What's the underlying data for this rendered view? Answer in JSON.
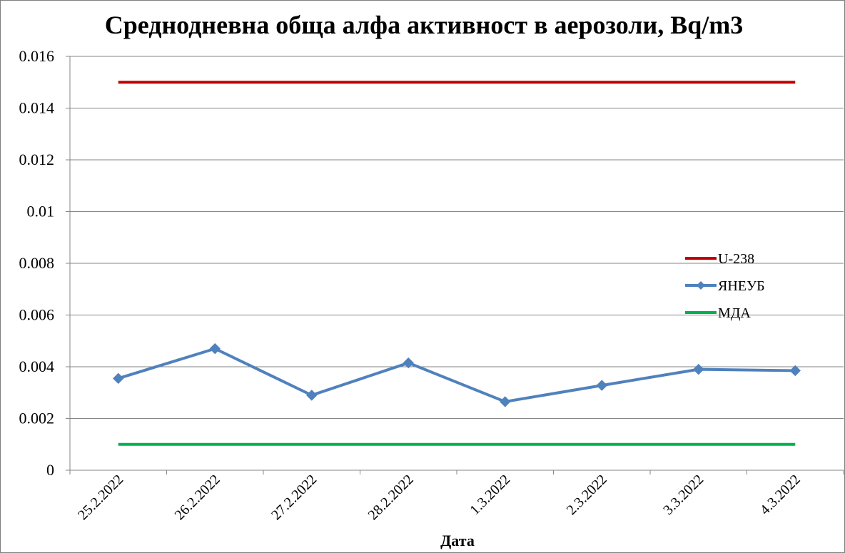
{
  "chart_data": {
    "type": "line",
    "title": "Среднодневна обща алфа активност в аерозоли, Bq/m3",
    "xlabel": "Дата",
    "ylabel": "",
    "categories": [
      "25.2.2022",
      "26.2.2022",
      "27.2.2022",
      "28.2.2022",
      "1.3.2022",
      "2.3.2022",
      "3.3.2022",
      "4.3.2022"
    ],
    "ylim": [
      0,
      0.016
    ],
    "yticks": [
      "0",
      "0.002",
      "0.004",
      "0.006",
      "0.008",
      "0.01",
      "0.012",
      "0.014",
      "0.016"
    ],
    "grid": true,
    "legend_position": "right",
    "series": [
      {
        "name": "U-238",
        "color": "#c00000",
        "marker": "none",
        "values": [
          0.015,
          0.015,
          0.015,
          0.015,
          0.015,
          0.015,
          0.015,
          0.015
        ]
      },
      {
        "name": "ЯНЕУБ",
        "color": "#4f81bd",
        "marker": "diamond",
        "values": [
          0.00355,
          0.0047,
          0.0029,
          0.00415,
          0.00265,
          0.00328,
          0.0039,
          0.00385
        ]
      },
      {
        "name": "МДА",
        "color": "#00b050",
        "marker": "none",
        "values": [
          0.001,
          0.001,
          0.001,
          0.001,
          0.001,
          0.001,
          0.001,
          0.001
        ]
      }
    ]
  }
}
